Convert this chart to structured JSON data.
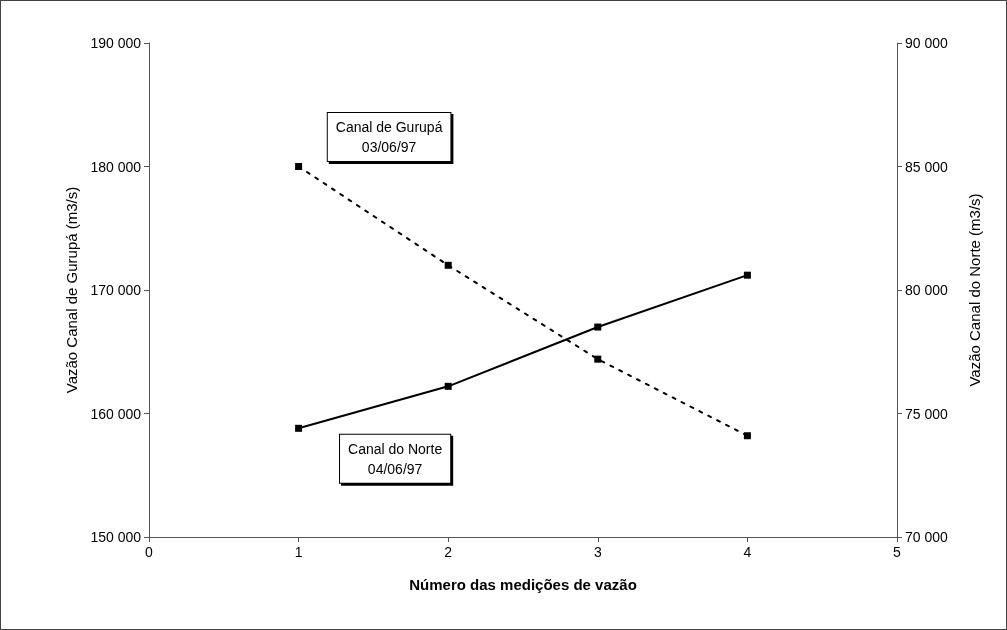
{
  "chart_data": {
    "type": "line",
    "xlabel": "Número das medições de vazão",
    "ylabel": "Vazão Canal de Gurupá (m3/s)",
    "y2label": "Vazão Canal do Norte (m3/s)",
    "x": [
      1,
      2,
      3,
      4
    ],
    "series": [
      {
        "name": "Canal de Gurupá\n03/06/97",
        "color": "#000000",
        "values": [
          180000,
          172000,
          164400,
          158200
        ],
        "line_style": "dotted"
      },
      {
        "name": "Canal do Norte\n04/06/97",
        "color": "#000000",
        "values": [
          74400,
          76100,
          78500,
          80600
        ],
        "axis": "y2",
        "line_style": "solid"
      }
    ],
    "xlim": [
      0,
      5
    ],
    "xticks": [
      0,
      1,
      2,
      3,
      4,
      5
    ],
    "ylim": [
      150000,
      190000
    ],
    "yticks": [
      {
        "value": 150000,
        "label": "150 000"
      },
      {
        "value": 160000,
        "label": "160 000"
      },
      {
        "value": 170000,
        "label": "170 000"
      },
      {
        "value": 180000,
        "label": "180 000"
      },
      {
        "value": 190000,
        "label": "190 000"
      }
    ],
    "y2lim": [
      70000,
      90000
    ],
    "y2ticks": [
      {
        "value": 70000,
        "label": "70 000"
      },
      {
        "value": 75000,
        "label": "75 000"
      },
      {
        "value": 80000,
        "label": "80 000"
      },
      {
        "value": 85000,
        "label": "85 000"
      },
      {
        "value": 90000,
        "label": "90 000"
      }
    ],
    "grid": false,
    "legend": false,
    "marker": "square"
  }
}
